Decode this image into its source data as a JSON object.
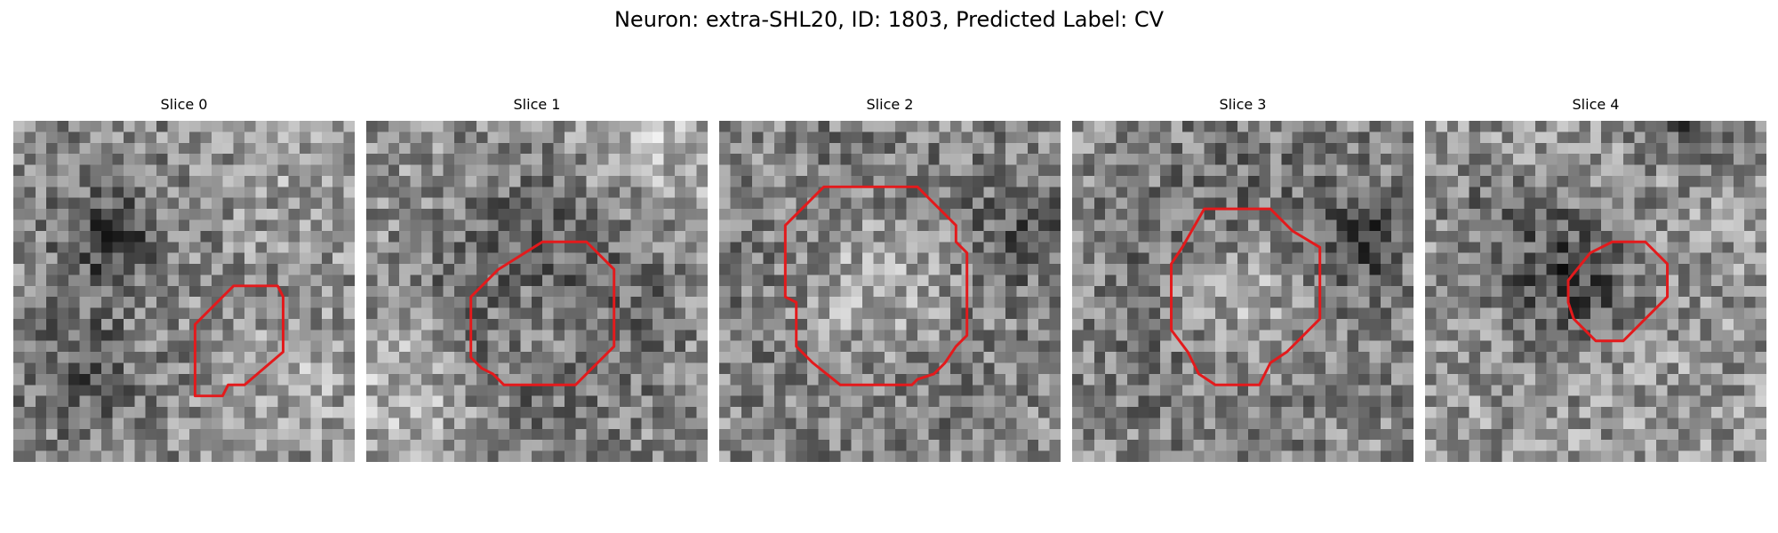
{
  "figure": {
    "title": "Neuron: extra-SHL20, ID: 1803, Predicted Label: CV",
    "outline_color": "#e31a1c"
  },
  "panels": [
    {
      "title": "Slice 0",
      "outline": [
        [
          20,
          15
        ],
        [
          24,
          15
        ],
        [
          24.5,
          16
        ],
        [
          24.5,
          21
        ],
        [
          21,
          24
        ],
        [
          19.5,
          24
        ],
        [
          19,
          25
        ],
        [
          16.5,
          25
        ],
        [
          16.5,
          18.5
        ],
        [
          19,
          16
        ]
      ],
      "tone": {
        "base": 140,
        "blobs": [
          [
            9,
            11,
            3.5,
            -70
          ],
          [
            6,
            23,
            4,
            -50
          ],
          [
            26,
            24,
            4,
            30
          ],
          [
            28,
            4,
            5,
            25
          ]
        ]
      }
    },
    {
      "title": "Slice 1",
      "outline": [
        [
          16,
          11
        ],
        [
          20,
          11
        ],
        [
          21.5,
          12.5
        ],
        [
          22.5,
          13.5
        ],
        [
          22.5,
          20.5
        ],
        [
          20.5,
          22.5
        ],
        [
          19,
          24
        ],
        [
          12.5,
          24
        ],
        [
          11.5,
          23
        ],
        [
          10.5,
          22.5
        ],
        [
          9.5,
          21.5
        ],
        [
          9.5,
          16
        ],
        [
          10.5,
          15
        ],
        [
          11,
          14.5
        ],
        [
          12,
          13.5
        ]
      ],
      "tone": {
        "base": 150,
        "blobs": [
          [
            16,
            17,
            8,
            -85
          ],
          [
            16,
            18,
            4,
            60
          ],
          [
            26,
            2,
            4,
            50
          ],
          [
            4,
            24,
            5,
            45
          ]
        ]
      }
    },
    {
      "title": "Slice 2",
      "outline": [
        [
          9.5,
          6
        ],
        [
          18,
          6
        ],
        [
          19.5,
          7.5
        ],
        [
          21.5,
          9.5
        ],
        [
          21.5,
          11
        ],
        [
          22.5,
          12
        ],
        [
          22.5,
          19.5
        ],
        [
          21.5,
          20.5
        ],
        [
          20.5,
          22
        ],
        [
          19.5,
          23
        ],
        [
          18,
          23.5
        ],
        [
          17.5,
          24
        ],
        [
          11,
          24
        ],
        [
          8.5,
          22
        ],
        [
          7,
          20.5
        ],
        [
          7,
          16.5
        ],
        [
          6,
          16
        ],
        [
          6,
          9.5
        ],
        [
          7,
          8.5
        ]
      ],
      "tone": {
        "base": 150,
        "blobs": [
          [
            14,
            15,
            10,
            -90
          ],
          [
            14,
            15,
            6.5,
            110
          ],
          [
            28,
            10,
            3,
            -40
          ]
        ]
      }
    },
    {
      "title": "Slice 3",
      "outline": [
        [
          12,
          8
        ],
        [
          18,
          8
        ],
        [
          20,
          10
        ],
        [
          22.5,
          11.5
        ],
        [
          22.5,
          18
        ],
        [
          21.5,
          19
        ],
        [
          20.5,
          20
        ],
        [
          19.5,
          21
        ],
        [
          18,
          22
        ],
        [
          17,
          24
        ],
        [
          13,
          24
        ],
        [
          11.5,
          23
        ],
        [
          11,
          22
        ],
        [
          10.5,
          21
        ],
        [
          9,
          19
        ],
        [
          9,
          13
        ],
        [
          10,
          11.5
        ]
      ],
      "tone": {
        "base": 145,
        "blobs": [
          [
            16,
            15,
            9,
            -80
          ],
          [
            16,
            16,
            5.5,
            100
          ],
          [
            26,
            11,
            2.5,
            -60
          ]
        ]
      }
    },
    {
      "title": "Slice 4",
      "outline": [
        [
          17,
          11
        ],
        [
          20,
          11
        ],
        [
          22,
          13
        ],
        [
          22,
          16
        ],
        [
          20,
          18
        ],
        [
          18,
          20
        ],
        [
          15.5,
          20
        ],
        [
          13.5,
          18
        ],
        [
          13,
          16.5
        ],
        [
          13,
          14.5
        ],
        [
          15,
          12
        ]
      ],
      "tone": {
        "base": 150,
        "blobs": [
          [
            13,
            14,
            4.5,
            -80
          ],
          [
            24,
            0,
            3,
            -60
          ],
          [
            5,
            8,
            3,
            -30
          ]
        ]
      }
    }
  ]
}
